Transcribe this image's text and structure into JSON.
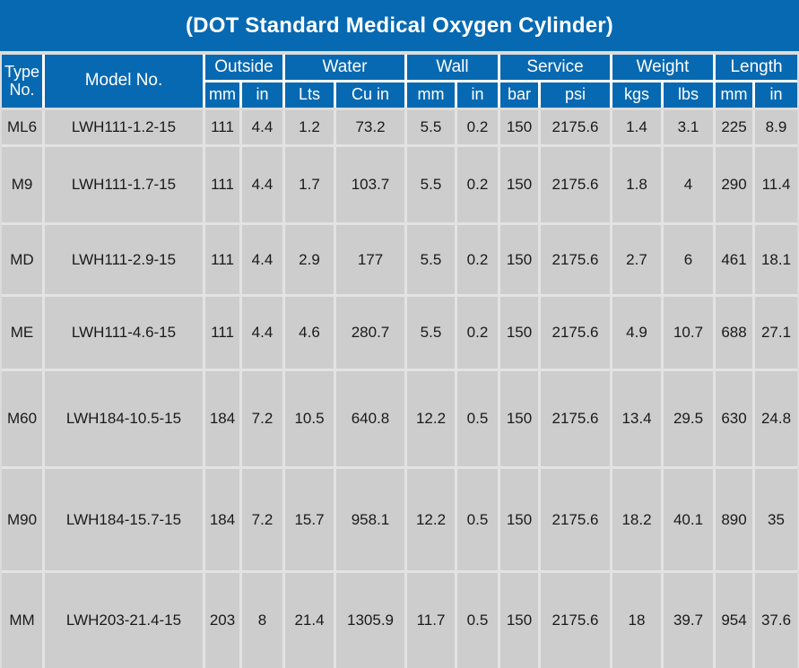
{
  "title": "(DOT Standard Medical Oxygen Cylinder)",
  "colors": {
    "header_bg": "#0769b1",
    "header_text": "#ffffff",
    "row_bg": "#cdcdcd",
    "row_text": "#1a1a1a",
    "header_grid_line": "#ffffff",
    "body_grid_line": "#e3e3e3",
    "page_bg": "#dcdcdc"
  },
  "chart_data": {
    "type": "table",
    "title": "(DOT Standard Medical Oxygen Cylinder)",
    "header": {
      "type_label": "Type No.",
      "model_label": "Model No.",
      "groups": [
        {
          "label": "Outside",
          "units": [
            "mm",
            "in"
          ]
        },
        {
          "label": "Water",
          "units": [
            "Lts",
            "Cu in"
          ]
        },
        {
          "label": "Wall",
          "units": [
            "mm",
            "in"
          ]
        },
        {
          "label": "Service",
          "units": [
            "bar",
            "psi"
          ]
        },
        {
          "label": "Weight",
          "units": [
            "kgs",
            "lbs"
          ]
        },
        {
          "label": "Length",
          "units": [
            "mm",
            "in"
          ]
        }
      ]
    },
    "columns": [
      "Type No.",
      "Model No.",
      "Outside mm",
      "Outside in",
      "Water Lts",
      "Water Cu in",
      "Wall mm",
      "Wall in",
      "Service bar",
      "Service psi",
      "Weight kgs",
      "Weight lbs",
      "Length mm",
      "Length in"
    ],
    "rows": [
      {
        "type_no": "ML6",
        "model_no": "LWH111-1.2-15",
        "values": [
          "111",
          "4.4",
          "1.2",
          "73.2",
          "5.5",
          "0.2",
          "150",
          "2175.6",
          "1.4",
          "3.1",
          "225",
          "8.9"
        ]
      },
      {
        "type_no": "M9",
        "model_no": "LWH111-1.7-15",
        "values": [
          "111",
          "4.4",
          "1.7",
          "103.7",
          "5.5",
          "0.2",
          "150",
          "2175.6",
          "1.8",
          "4",
          "290",
          "11.4"
        ]
      },
      {
        "type_no": "MD",
        "model_no": "LWH111-2.9-15",
        "values": [
          "111",
          "4.4",
          "2.9",
          "177",
          "5.5",
          "0.2",
          "150",
          "2175.6",
          "2.7",
          "6",
          "461",
          "18.1"
        ]
      },
      {
        "type_no": "ME",
        "model_no": "LWH111-4.6-15",
        "values": [
          "111",
          "4.4",
          "4.6",
          "280.7",
          "5.5",
          "0.2",
          "150",
          "2175.6",
          "4.9",
          "10.7",
          "688",
          "27.1"
        ]
      },
      {
        "type_no": "M60",
        "model_no": "LWH184-10.5-15",
        "values": [
          "184",
          "7.2",
          "10.5",
          "640.8",
          "12.2",
          "0.5",
          "150",
          "2175.6",
          "13.4",
          "29.5",
          "630",
          "24.8"
        ]
      },
      {
        "type_no": "M90",
        "model_no": "LWH184-15.7-15",
        "values": [
          "184",
          "7.2",
          "15.7",
          "958.1",
          "12.2",
          "0.5",
          "150",
          "2175.6",
          "18.2",
          "40.1",
          "890",
          "35"
        ]
      },
      {
        "type_no": "MM",
        "model_no": "LWH203-21.4-15",
        "values": [
          "203",
          "8",
          "21.4",
          "1305.9",
          "11.7",
          "0.5",
          "150",
          "2175.6",
          "18",
          "39.7",
          "954",
          "37.6"
        ]
      }
    ]
  }
}
